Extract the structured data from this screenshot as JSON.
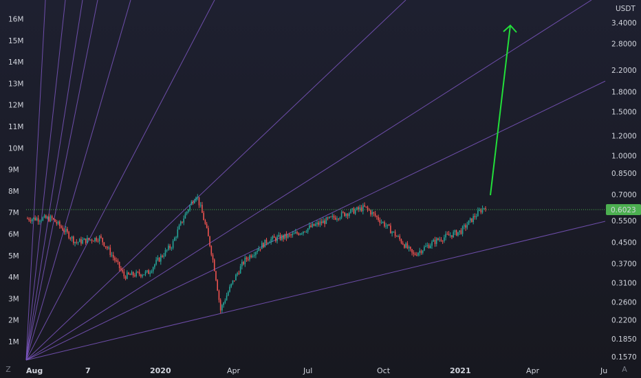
{
  "chart_data": {
    "type": "candlestick",
    "symbol_currency": "USDT",
    "current_price_label": "0.6023",
    "colors": {
      "background": "#1e2030",
      "up": "#26a69a",
      "down": "#ef5350",
      "fan_lines": "#7e57c2",
      "projection_arrow": "#22e03a",
      "price_badge": "#4caf50"
    },
    "left_axis": {
      "ticks": [
        "1M",
        "2M",
        "3M",
        "4M",
        "5M",
        "6M",
        "7M",
        "8M",
        "9M",
        "10M",
        "11M",
        "12M",
        "13M",
        "14M",
        "15M",
        "16M"
      ]
    },
    "right_axis": {
      "scale": "log",
      "ticks": [
        "3.4000",
        "2.8000",
        "2.2000",
        "1.8000",
        "1.5000",
        "1.2000",
        "1.0000",
        "0.8500",
        "0.7000",
        "0.5500",
        "0.4500",
        "0.3700",
        "0.3100",
        "0.2600",
        "0.2200",
        "0.1850",
        "0.1570"
      ]
    },
    "x_axis": {
      "ticks": [
        {
          "label": "Aug",
          "bold": true
        },
        {
          "label": "7",
          "bold": true
        },
        {
          "label": "2020",
          "bold": true
        },
        {
          "label": "Apr",
          "bold": false
        },
        {
          "label": "Jul",
          "bold": false
        },
        {
          "label": "Oct",
          "bold": false
        },
        {
          "label": "2021",
          "bold": true
        },
        {
          "label": "Apr",
          "bold": false
        },
        {
          "label": "Ju",
          "bold": false
        }
      ]
    },
    "series": [
      {
        "approx_close_path": [
          [
            "2019-08",
            0.56
          ],
          [
            "2019-09",
            0.56
          ],
          [
            "2019-10",
            0.45
          ],
          [
            "2019-11",
            0.47
          ],
          [
            "2019-12",
            0.33
          ],
          [
            "2020-01",
            0.34
          ],
          [
            "2020-02",
            0.44
          ],
          [
            "2020-03",
            0.7
          ],
          [
            "2020-03b",
            0.24
          ],
          [
            "2020-04",
            0.38
          ],
          [
            "2020-05",
            0.46
          ],
          [
            "2020-06",
            0.48
          ],
          [
            "2020-07",
            0.53
          ],
          [
            "2020-08",
            0.58
          ],
          [
            "2020-09",
            0.62
          ],
          [
            "2020-10",
            0.51
          ],
          [
            "2020-11",
            0.4
          ],
          [
            "2020-12",
            0.46
          ],
          [
            "2021-01",
            0.5
          ],
          [
            "2021-02",
            0.63
          ]
        ],
        "projection_target": 3.4
      }
    ],
    "corner_labels": {
      "left": "Z",
      "right": "A"
    }
  }
}
